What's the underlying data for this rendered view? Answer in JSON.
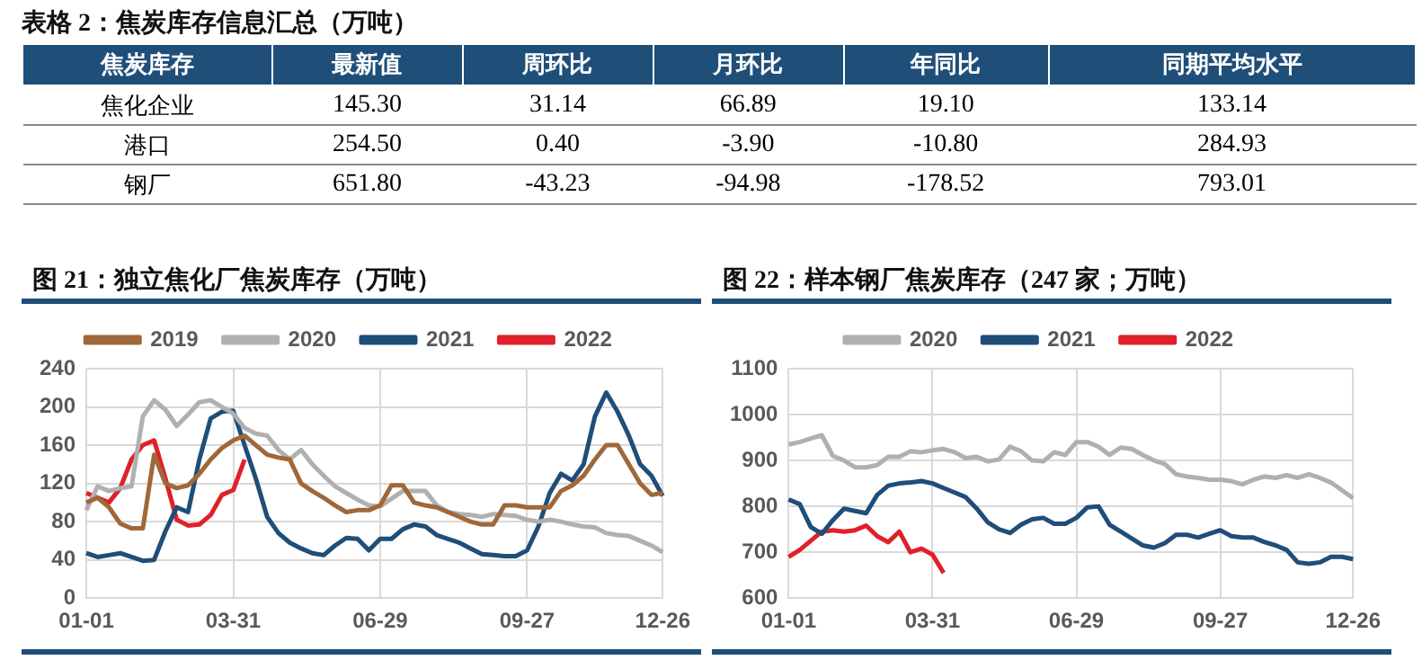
{
  "chart_data": [
    {
      "type": "heatmap",
      "title": "表格 2：焦炭库存信息汇总（万吨）",
      "ylabel": "焦炭库存",
      "categories": [
        "最新值",
        "周环比",
        "月环比",
        "年同比",
        "同期平均水平"
      ],
      "y_categories": [
        "焦化企业",
        "港口",
        "钢厂"
      ],
      "cells": [
        [
          145.3,
          31.14,
          66.89,
          19.1,
          133.14
        ],
        [
          254.5,
          0.4,
          -3.9,
          -10.8,
          284.93
        ],
        [
          651.8,
          -43.23,
          -94.98,
          -178.52,
          793.01
        ]
      ],
      "cell_labels": [
        [
          "145.30",
          "31.14",
          "66.89",
          "19.10",
          "133.14"
        ],
        [
          "254.50",
          "0.40",
          "-3.90",
          "-10.80",
          "284.93"
        ],
        [
          "651.80",
          "-43.23",
          "-94.98",
          "-178.52",
          "793.01"
        ]
      ]
    },
    {
      "type": "line",
      "title": "图 21：独立焦化厂焦炭库存（万吨）",
      "categories": [
        "01-01",
        null,
        null,
        null,
        null,
        null,
        null,
        null,
        null,
        null,
        null,
        null,
        null,
        "03-31",
        null,
        null,
        null,
        null,
        null,
        null,
        null,
        null,
        null,
        null,
        null,
        null,
        "06-29",
        null,
        null,
        null,
        null,
        null,
        null,
        null,
        null,
        null,
        null,
        null,
        null,
        "09-27",
        null,
        null,
        null,
        null,
        null,
        null,
        null,
        null,
        null,
        null,
        null,
        "12-26"
      ],
      "ylim": [
        0,
        240
      ],
      "yticks": [
        0,
        40,
        80,
        120,
        160,
        200,
        240
      ],
      "grid": true,
      "legend": "top",
      "marker": "none",
      "series": [
        {
          "name": "2019",
          "color": "#a0683a",
          "values": [
            100,
            105,
            95,
            78,
            73,
            73,
            150,
            120,
            115,
            118,
            130,
            145,
            157,
            165,
            170,
            160,
            150,
            147,
            145,
            120,
            112,
            105,
            97,
            90,
            92,
            92,
            97,
            118,
            118,
            100,
            97,
            95,
            90,
            85,
            80,
            77,
            77,
            97,
            97,
            95,
            95,
            95,
            112,
            118,
            128,
            145,
            160,
            160,
            140,
            120,
            108,
            110
          ]
        },
        {
          "name": "2020",
          "color": "#b0b0b0",
          "values": [
            92,
            117,
            112,
            115,
            117,
            190,
            207,
            197,
            180,
            192,
            205,
            207,
            200,
            193,
            178,
            172,
            170,
            155,
            145,
            155,
            140,
            128,
            117,
            110,
            103,
            97,
            96,
            104,
            112,
            112,
            112,
            97,
            90,
            88,
            87,
            85,
            88,
            87,
            86,
            82,
            80,
            82,
            80,
            77,
            75,
            74,
            68,
            66,
            65,
            60,
            55,
            48
          ]
        },
        {
          "name": "2021",
          "color": "#1f4e79",
          "values": [
            47,
            43,
            45,
            47,
            43,
            39,
            40,
            70,
            95,
            90,
            145,
            188,
            195,
            196,
            160,
            125,
            85,
            68,
            58,
            52,
            47,
            45,
            55,
            63,
            62,
            50,
            62,
            62,
            72,
            77,
            75,
            66,
            62,
            58,
            52,
            46,
            45,
            44,
            44,
            50,
            75,
            110,
            130,
            123,
            140,
            190,
            215,
            195,
            170,
            140,
            128,
            107
          ]
        },
        {
          "name": "2022",
          "color": "#e0202a",
          "values": [
            110,
            105,
            100,
            115,
            145,
            160,
            165,
            125,
            82,
            76,
            77,
            87,
            108,
            113,
            145,
            null,
            null,
            null,
            null,
            null,
            null,
            null,
            null,
            null,
            null,
            null,
            null,
            null,
            null,
            null,
            null,
            null,
            null,
            null,
            null,
            null,
            null,
            null,
            null,
            null,
            null,
            null,
            null,
            null,
            null,
            null,
            null,
            null,
            null,
            null,
            null,
            null
          ]
        }
      ]
    },
    {
      "type": "line",
      "title": "图 22：样本钢厂焦炭库存（247 家；万吨）",
      "categories": [
        "01-01",
        null,
        null,
        null,
        null,
        null,
        null,
        null,
        null,
        null,
        null,
        null,
        null,
        "03-31",
        null,
        null,
        null,
        null,
        null,
        null,
        null,
        null,
        null,
        null,
        null,
        null,
        "06-29",
        null,
        null,
        null,
        null,
        null,
        null,
        null,
        null,
        null,
        null,
        null,
        null,
        "09-27",
        null,
        null,
        null,
        null,
        null,
        null,
        null,
        null,
        null,
        null,
        null,
        "12-26"
      ],
      "ylim": [
        600,
        1100
      ],
      "yticks": [
        600,
        700,
        800,
        900,
        1000,
        1100
      ],
      "grid": true,
      "legend": "top",
      "marker": "none",
      "series": [
        {
          "name": "2020",
          "color": "#b0b0b0",
          "values": [
            935,
            940,
            948,
            955,
            910,
            900,
            885,
            885,
            890,
            908,
            908,
            920,
            918,
            922,
            925,
            918,
            905,
            908,
            898,
            902,
            930,
            920,
            900,
            898,
            918,
            912,
            940,
            940,
            930,
            912,
            928,
            925,
            912,
            900,
            892,
            870,
            865,
            862,
            858,
            858,
            855,
            848,
            858,
            865,
            862,
            868,
            862,
            870,
            862,
            852,
            835,
            818
          ]
        },
        {
          "name": "2021",
          "color": "#1f4e79",
          "values": [
            815,
            805,
            755,
            740,
            770,
            795,
            790,
            785,
            825,
            845,
            850,
            852,
            855,
            850,
            840,
            830,
            820,
            795,
            765,
            750,
            742,
            760,
            772,
            775,
            762,
            762,
            775,
            798,
            800,
            760,
            745,
            730,
            715,
            710,
            720,
            738,
            738,
            732,
            740,
            748,
            735,
            732,
            732,
            722,
            715,
            705,
            678,
            675,
            678,
            690,
            690,
            685
          ]
        },
        {
          "name": "2022",
          "color": "#e0202a",
          "values": [
            690,
            705,
            725,
            745,
            748,
            745,
            748,
            758,
            735,
            722,
            745,
            700,
            708,
            695,
            655,
            null,
            null,
            null,
            null,
            null,
            null,
            null,
            null,
            null,
            null,
            null,
            null,
            null,
            null,
            null,
            null,
            null,
            null,
            null,
            null,
            null,
            null,
            null,
            null,
            null,
            null,
            null,
            null,
            null,
            null,
            null,
            null,
            null,
            null,
            null,
            null,
            null
          ]
        }
      ]
    }
  ]
}
